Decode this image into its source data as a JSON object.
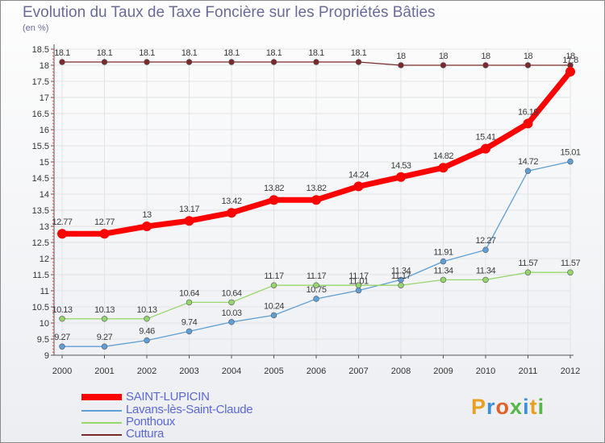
{
  "title": "Evolution du Taux de Taxe Foncière sur les Propriétés Bâties",
  "unit_label": "(en %)",
  "logo_text": "Proxiti",
  "chart_data": {
    "type": "line",
    "title": "Evolution du Taux de Taxe Foncière sur les Propriétés Bâties",
    "ylabel": "(en %)",
    "xlabel": "",
    "x": [
      "2000",
      "2001",
      "2002",
      "2003",
      "2004",
      "2005",
      "2006",
      "2007",
      "2008",
      "2009",
      "2010",
      "2011",
      "2012"
    ],
    "ylim": [
      9,
      18.5
    ],
    "yticks": [
      "9",
      "9.5",
      "10",
      "10.5",
      "11",
      "11.5",
      "12",
      "12.5",
      "13",
      "13.5",
      "14",
      "14.5",
      "15",
      "15.5",
      "16",
      "16.5",
      "17",
      "17.5",
      "18",
      "18.5"
    ],
    "legend_position": "bottom-left",
    "series": [
      {
        "name": "SAINT-LUPICIN",
        "color": "#ff0000",
        "values": [
          12.77,
          12.77,
          13,
          13.17,
          13.42,
          13.82,
          13.82,
          14.24,
          14.53,
          14.82,
          15.41,
          16.19,
          17.8
        ],
        "labels": [
          "12.77",
          "12.77",
          "13",
          "13.17",
          "13.42",
          "13.82",
          "13.82",
          "14.24",
          "14.53",
          "14.82",
          "15.41",
          "16.19",
          "17.8"
        ]
      },
      {
        "name": "Lavans-lès-Saint-Claude",
        "color": "#5f9fd4",
        "values": [
          9.27,
          9.27,
          9.46,
          9.74,
          10.03,
          10.24,
          10.75,
          11.01,
          11.34,
          11.91,
          12.27,
          14.72,
          15.01
        ],
        "labels": [
          "9.27",
          "9.27",
          "9.46",
          "9.74",
          "10.03",
          "10.24",
          "10.75",
          "11.01",
          "11.34",
          "11.91",
          "12.27",
          "14.72",
          "15.01"
        ]
      },
      {
        "name": "Ponthoux",
        "color": "#97d66b",
        "values": [
          10.13,
          10.13,
          10.13,
          10.64,
          10.64,
          11.17,
          11.17,
          11.17,
          11.17,
          11.34,
          11.34,
          11.57,
          11.57
        ],
        "labels": [
          "10.13",
          "10.13",
          "10.13",
          "10.64",
          "10.64",
          "11.17",
          "11.17",
          "11.17",
          "11.17",
          "11.34",
          "11.34",
          "11.57",
          "11.57"
        ]
      },
      {
        "name": "Cuttura",
        "color": "#7b2a2a",
        "values": [
          18.1,
          18.1,
          18.1,
          18.1,
          18.1,
          18.1,
          18.1,
          18.1,
          18,
          18,
          18,
          18,
          18
        ],
        "labels": [
          "18.1",
          "18.1",
          "18.1",
          "18.1",
          "18.1",
          "18.1",
          "18.1",
          "18.1",
          "18",
          "18",
          "18",
          "18",
          "18"
        ]
      }
    ]
  }
}
